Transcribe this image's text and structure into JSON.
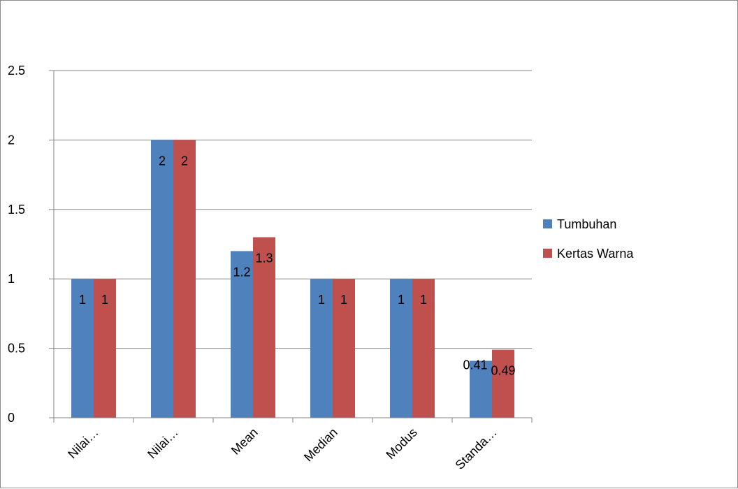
{
  "chart_data": {
    "type": "bar",
    "title": "",
    "xlabel": "",
    "ylabel": "",
    "categories": [
      "Nilai…",
      "Nilai…",
      "Mean",
      "Median",
      "Modus",
      "Standa…"
    ],
    "series": [
      {
        "name": "Tumbuhan",
        "color": "#4f81bd",
        "values": [
          1,
          2,
          1.2,
          1,
          1,
          0.41
        ]
      },
      {
        "name": "Kertas Warna",
        "color": "#c0504d",
        "values": [
          1,
          2,
          1.3,
          1,
          1,
          0.49
        ]
      }
    ],
    "ylim": [
      0,
      2.5
    ],
    "yticks": [
      0,
      0.5,
      1,
      1.5,
      2,
      2.5
    ],
    "ytick_labels": [
      "0",
      "0.5",
      "1",
      "1.5",
      "2",
      "2.5"
    ],
    "data_labels": [
      [
        "1",
        "2",
        "1.2",
        "1",
        "1",
        "0.41"
      ],
      [
        "1",
        "2",
        "1.3",
        "1",
        "1",
        "0.49"
      ]
    ],
    "grid": true,
    "legend_position": "right",
    "gridline_color": "#868686"
  }
}
